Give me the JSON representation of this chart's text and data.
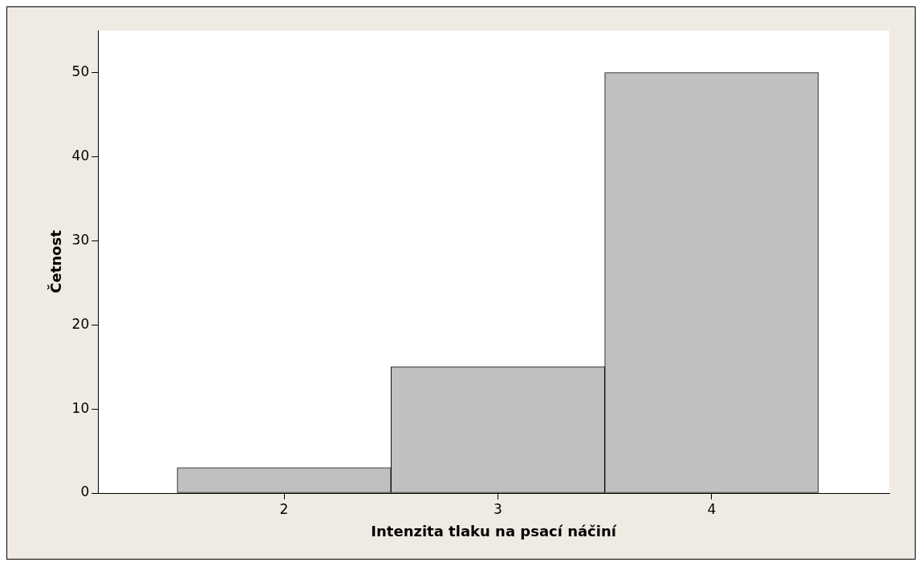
{
  "chart_data": {
    "type": "histogram",
    "xlabel": "Intenzita tlaku na psací náčiní",
    "ylabel": "Četnost",
    "bins": [
      1.5,
      2.5,
      3.5,
      4.5
    ],
    "values": [
      3,
      15,
      50
    ],
    "color": "#c0c0c0",
    "xlim": [
      1.13,
      4.83
    ],
    "xticks": [
      2,
      3,
      4
    ],
    "ylim": [
      0,
      55
    ],
    "yticks": [
      0,
      10,
      20,
      30,
      40,
      50
    ],
    "grid": false
  }
}
